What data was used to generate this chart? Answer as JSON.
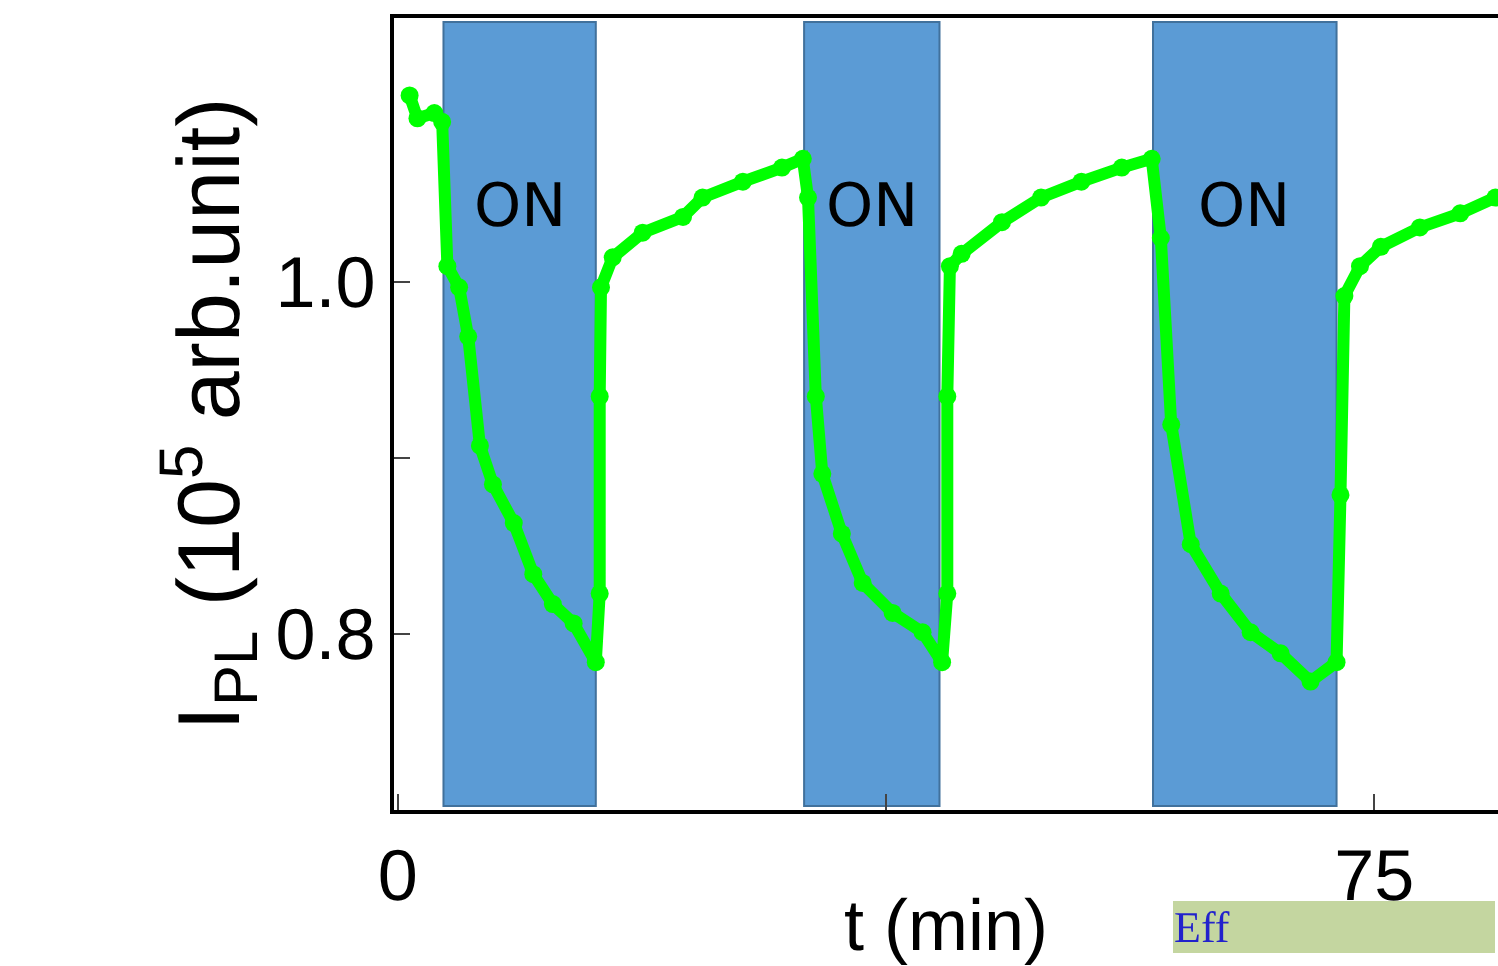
{
  "chart_data": {
    "type": "line",
    "xlabel": "t (min)",
    "ylabel": "I$_{PL}$ (10$^{5}$ arb.unit)",
    "xlim": [
      -0.3,
      84.5
    ],
    "ylim": [
      0.7,
      1.15
    ],
    "xticks": [
      0,
      {
        "value": 37.5,
        "label": null
      },
      75
    ],
    "yticks": [
      0.8,
      {
        "value": 0.9,
        "label": null
      },
      {
        "value": 1.0,
        "label": "1.0"
      }
    ],
    "marker": "circle",
    "series": [
      {
        "color": "#00ff00",
        "x": [
          0.9,
          1.5,
          2.8,
          3.4,
          3.8,
          4.7,
          5.4,
          6.3,
          7.3,
          8.9,
          10.4,
          11.9,
          13.5,
          15.2,
          15.5,
          15.5,
          15.6,
          16.5,
          18.8,
          21.9,
          23.4,
          26.5,
          29.5,
          31.1,
          31.5,
          32.1,
          32.6,
          34.1,
          35.7,
          38.0,
          40.3,
          41.8,
          42.2,
          42.2,
          42.4,
          43.3,
          46.4,
          49.4,
          52.5,
          55.6,
          57.9,
          58.6,
          59.4,
          60.9,
          63.2,
          65.5,
          67.8,
          70.1,
          72.1,
          72.4,
          72.7,
          73.9,
          75.5,
          78.5,
          81.6,
          84.3
        ],
        "values": [
          1.106,
          1.093,
          1.096,
          1.091,
          1.009,
          0.997,
          0.969,
          0.907,
          0.885,
          0.863,
          0.834,
          0.817,
          0.806,
          0.784,
          0.823,
          0.935,
          0.997,
          1.014,
          1.028,
          1.037,
          1.048,
          1.057,
          1.065,
          1.07,
          1.048,
          0.935,
          0.891,
          0.857,
          0.829,
          0.812,
          0.801,
          0.784,
          0.823,
          0.935,
          1.009,
          1.016,
          1.034,
          1.048,
          1.057,
          1.065,
          1.07,
          1.025,
          0.919,
          0.851,
          0.823,
          0.801,
          0.789,
          0.773,
          0.784,
          0.879,
          0.992,
          1.009,
          1.02,
          1.031,
          1.039,
          1.048
        ]
      }
    ],
    "bands": [
      {
        "axis": "x",
        "from": 3.5,
        "to": 15.2,
        "label": "ON",
        "color": "#5b9bd5"
      },
      {
        "axis": "x",
        "from": 31.2,
        "to": 41.6,
        "label": "ON",
        "color": "#5b9bd5"
      },
      {
        "axis": "x",
        "from": 58.0,
        "to": 72.1,
        "label": "ON",
        "color": "#5b9bd5"
      }
    ],
    "annotations": [
      "Eff"
    ]
  }
}
